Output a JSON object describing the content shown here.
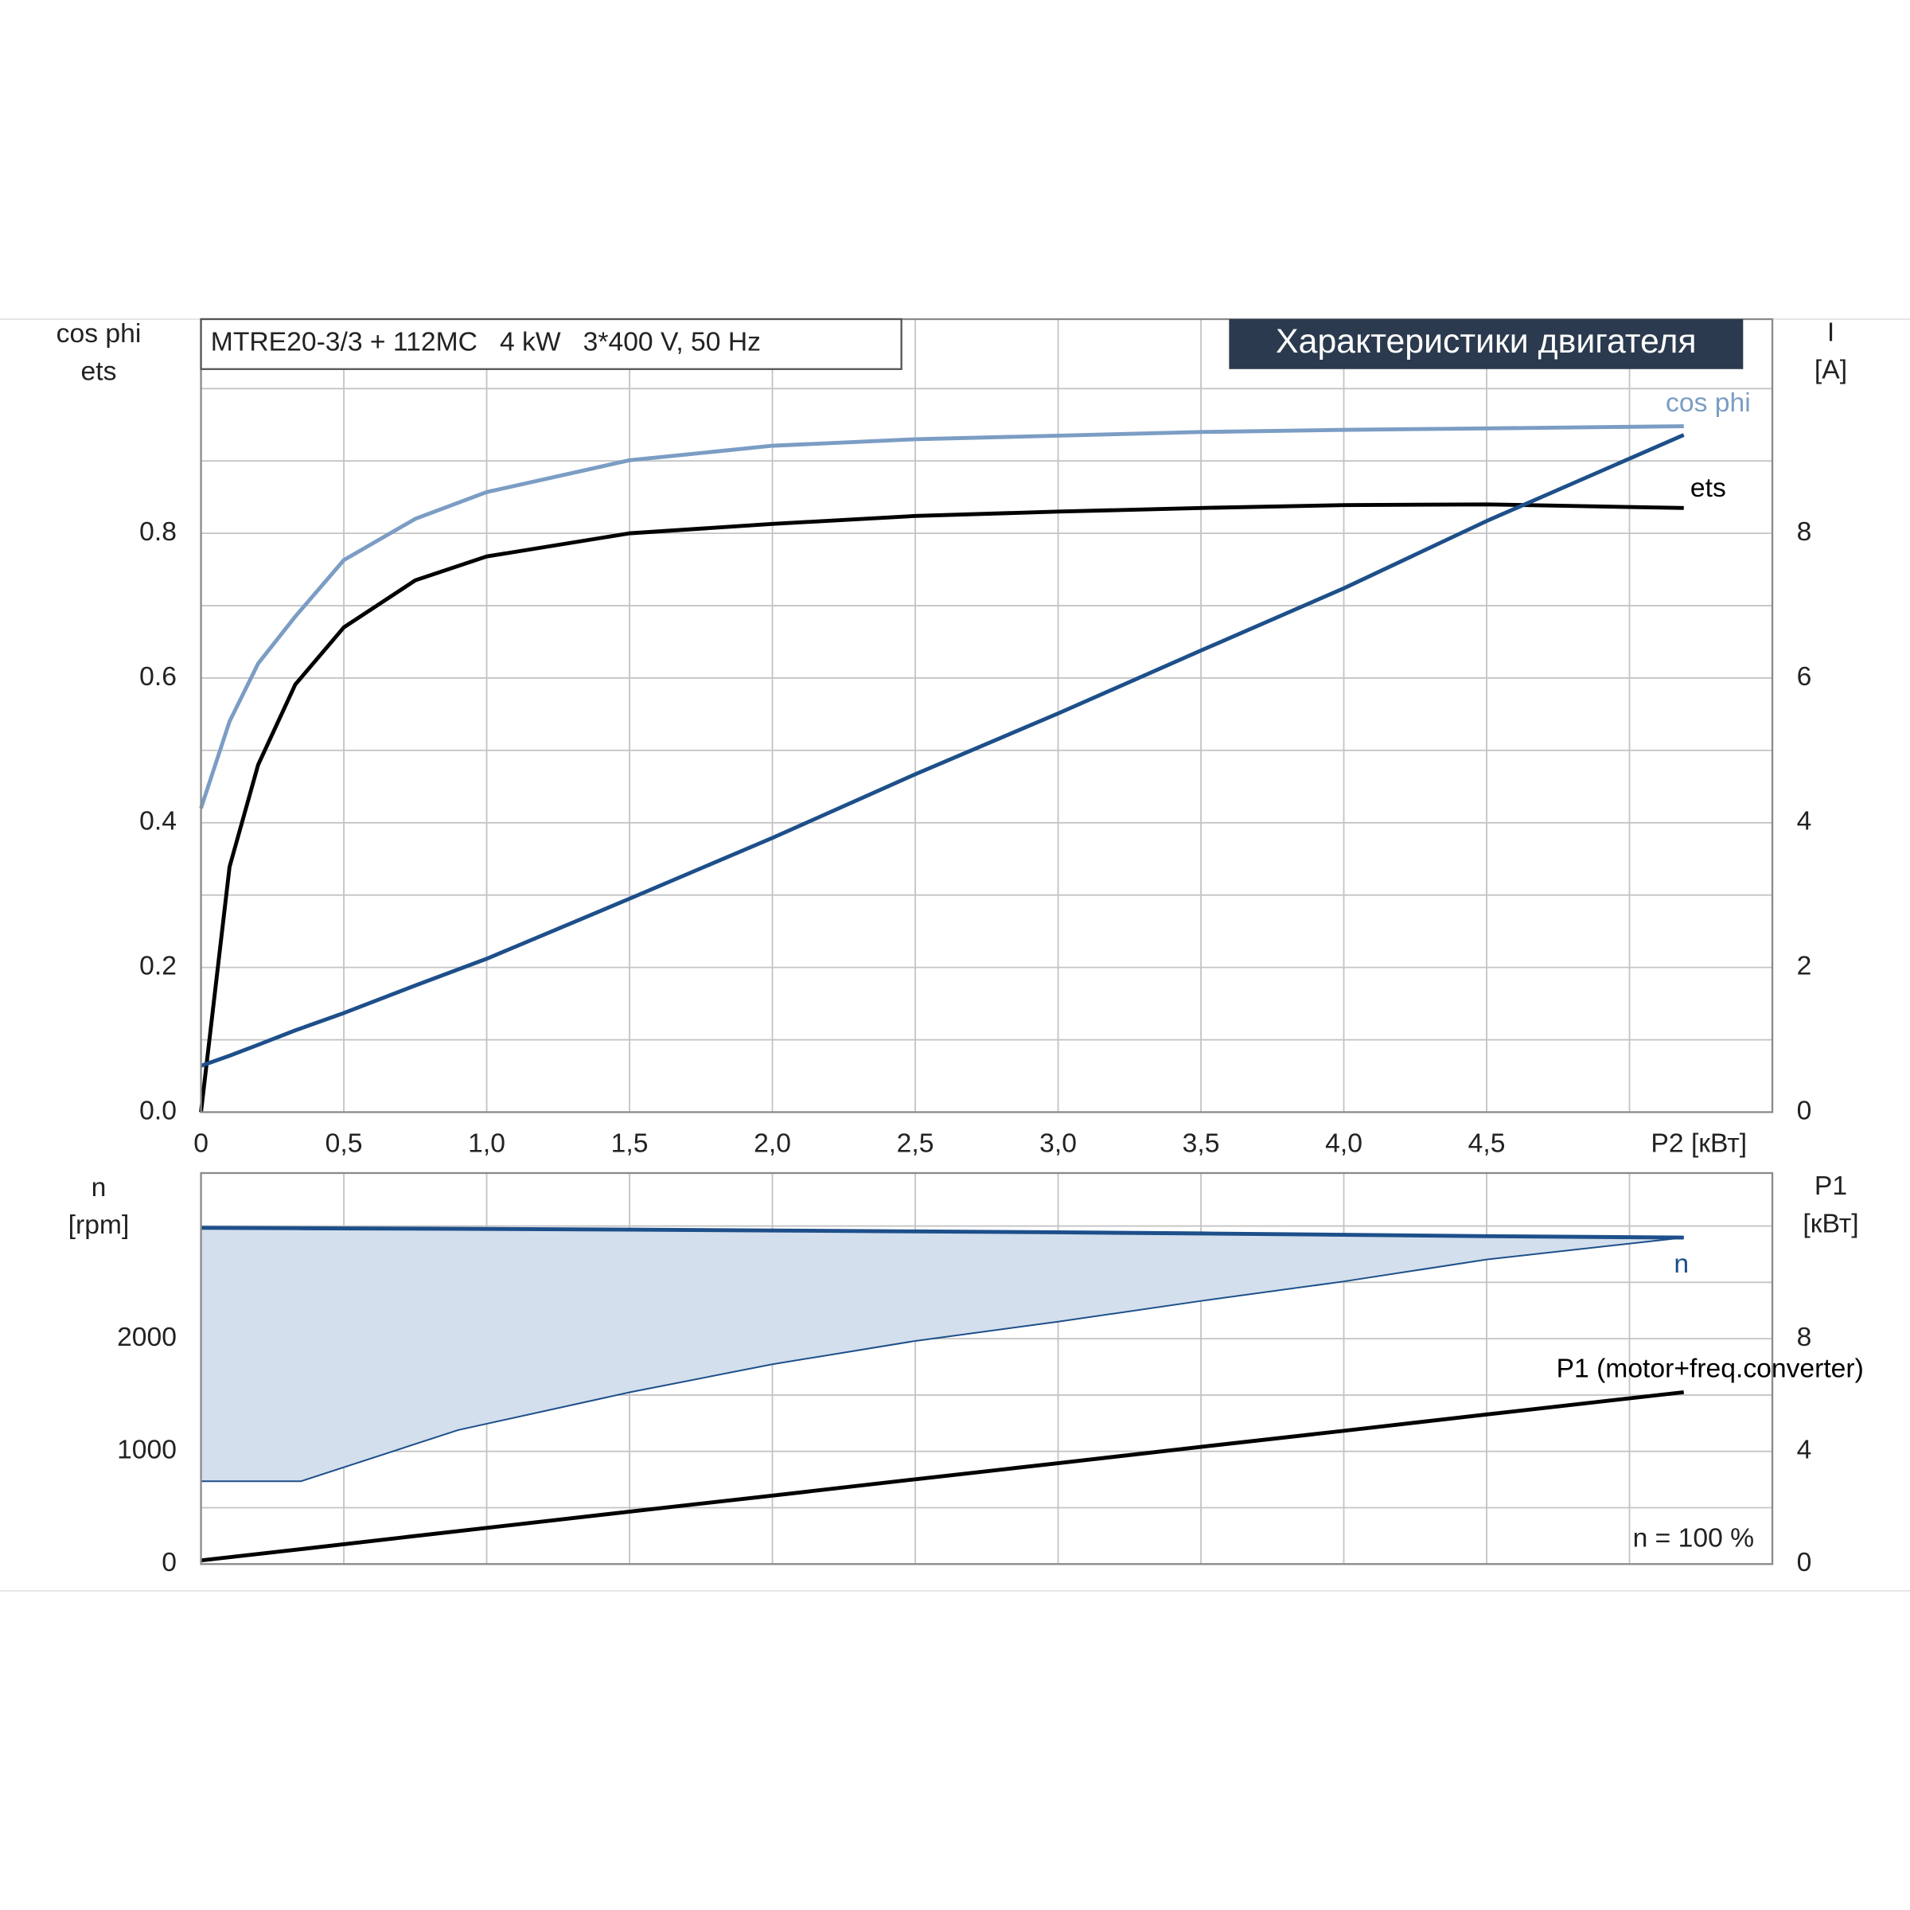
{
  "chart_data": [
    {
      "type": "line",
      "title": "Характеристики двигателя",
      "subtitle": "MTRE20-3/3 + 112MC   4 kW   3*400 V, 50 Hz",
      "ylabel": [
        "cos phi",
        "ets"
      ],
      "y2label": [
        "I",
        "[A]"
      ],
      "x": [
        0,
        0.1,
        0.2,
        0.33,
        0.5,
        0.75,
        1.0,
        1.5,
        2.0,
        2.5,
        3.0,
        3.5,
        4.0,
        4.5,
        5.19
      ],
      "xlim": [
        0,
        5.5
      ],
      "xticks": [
        0,
        {
          "value": 0.5,
          "label": "0,5"
        },
        {
          "value": 1,
          "label": "1,0"
        },
        {
          "value": 1.5,
          "label": "1,5"
        },
        {
          "value": 2,
          "label": "2,0"
        },
        {
          "value": 2.5,
          "label": "2,5"
        },
        {
          "value": 3,
          "label": "3,0"
        },
        {
          "value": 3.5,
          "label": "3,5"
        },
        {
          "value": 4,
          "label": "4,0"
        },
        {
          "value": 4.5,
          "label": "4,5"
        },
        {
          "value": 5,
          "label": "P2 [кВт]"
        }
      ],
      "ylim": [
        0,
        1.096
      ],
      "yticks": [
        {
          "value": 0,
          "label": "0.0"
        },
        0.2,
        0.4,
        0.6,
        0.8
      ],
      "y_minor_grid": [
        0.1,
        0.3,
        0.5,
        0.7,
        0.9,
        1.0
      ],
      "y2lim": [
        0,
        10.96
      ],
      "y2ticks": [
        0,
        2,
        4,
        6,
        8
      ],
      "grid": true,
      "series": [
        {
          "name": "cos phi",
          "color": "#7b9dc4",
          "values": [
            0.42,
            0.54,
            0.62,
            0.685,
            0.763,
            0.82,
            0.857,
            0.901,
            0.921,
            0.93,
            0.935,
            0.94,
            0.943,
            0.945,
            0.948
          ]
        },
        {
          "name": "ets",
          "color": "#000000",
          "values": [
            0,
            0.339,
            0.48,
            0.591,
            0.67,
            0.735,
            0.768,
            0.8,
            0.813,
            0.824,
            0.83,
            0.835,
            0.839,
            0.84,
            0.835
          ]
        },
        {
          "color": "#1d4f8a",
          "axis": "y2",
          "values": [
            0.64,
            0.78,
            0.93,
            1.13,
            1.37,
            1.75,
            2.12,
            2.95,
            3.79,
            4.67,
            5.51,
            6.38,
            7.24,
            8.17,
            9.36
          ]
        }
      ]
    },
    {
      "type": "line",
      "ylabel": [
        "n",
        "[rpm]"
      ],
      "y2label": [
        "P1",
        "[кВт]"
      ],
      "annotation": "n = 100 %",
      "x": [
        0,
        0.35,
        0.9,
        1.5,
        2.0,
        2.5,
        3.0,
        3.5,
        4.0,
        4.5,
        5.19
      ],
      "xlim": [
        0,
        5.5
      ],
      "ylim": [
        0,
        3470
      ],
      "yticks": [
        0,
        1000,
        2000
      ],
      "y_minor_grid": [
        500,
        1500,
        2500,
        3000
      ],
      "y2lim": [
        0,
        13.88
      ],
      "y2ticks": [
        0,
        4,
        8
      ],
      "grid": true,
      "series": [
        {
          "name": "n",
          "color": "#1d4f8a",
          "fill": "#d3dfec",
          "values": [
            2984,
            2980,
            2975,
            2968,
            2960,
            2952,
            2944,
            2934,
            2922,
            2910,
            2897
          ],
          "lower": [
            735,
            735,
            1189,
            1524,
            1773,
            1980,
            2151,
            2335,
            2508,
            2703,
            2897
          ]
        },
        {
          "name": "P1 (motor+freq.converter)",
          "color": "#000000",
          "axis": "y2",
          "values": [
            0.13,
            0.53,
            1.17,
            1.86,
            2.43,
            3.01,
            3.58,
            4.16,
            4.73,
            5.31,
            6.1
          ]
        }
      ]
    }
  ]
}
